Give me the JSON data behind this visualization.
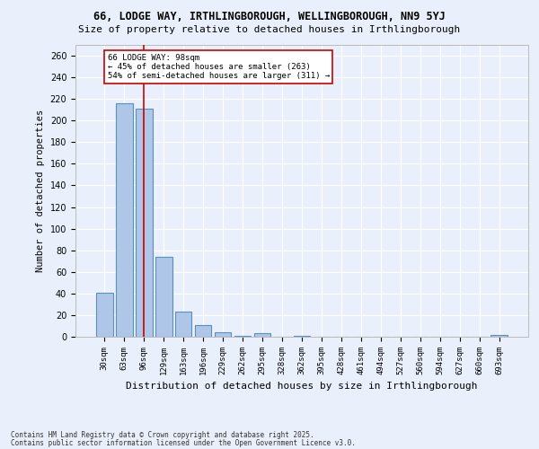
{
  "title_line1": "66, LODGE WAY, IRTHLINGBOROUGH, WELLINGBOROUGH, NN9 5YJ",
  "title_line2": "Size of property relative to detached houses in Irthlingborough",
  "xlabel": "Distribution of detached houses by size in Irthlingborough",
  "ylabel": "Number of detached properties",
  "categories": [
    "30sqm",
    "63sqm",
    "96sqm",
    "129sqm",
    "163sqm",
    "196sqm",
    "229sqm",
    "262sqm",
    "295sqm",
    "328sqm",
    "362sqm",
    "395sqm",
    "428sqm",
    "461sqm",
    "494sqm",
    "527sqm",
    "560sqm",
    "594sqm",
    "627sqm",
    "660sqm",
    "693sqm"
  ],
  "values": [
    41,
    216,
    211,
    74,
    23,
    11,
    4,
    1,
    3,
    0,
    1,
    0,
    0,
    0,
    0,
    0,
    0,
    0,
    0,
    0,
    2
  ],
  "bar_color": "#aec6e8",
  "bar_edge_color": "#5a8fc0",
  "vline_x_idx": 2,
  "vline_color": "#cc0000",
  "vline_label": "66 LODGE WAY: 98sqm",
  "annotation_line2": "← 45% of detached houses are smaller (263)",
  "annotation_line3": "54% of semi-detached houses are larger (311) →",
  "annotation_box_color": "#ffffff",
  "annotation_box_edge": "#cc0000",
  "ylim": [
    0,
    270
  ],
  "yticks": [
    0,
    20,
    40,
    60,
    80,
    100,
    120,
    140,
    160,
    180,
    200,
    220,
    240,
    260
  ],
  "background_color": "#eaf0fb",
  "grid_color": "#ffffff",
  "footnote1": "Contains HM Land Registry data © Crown copyright and database right 2025.",
  "footnote2": "Contains public sector information licensed under the Open Government Licence v3.0."
}
